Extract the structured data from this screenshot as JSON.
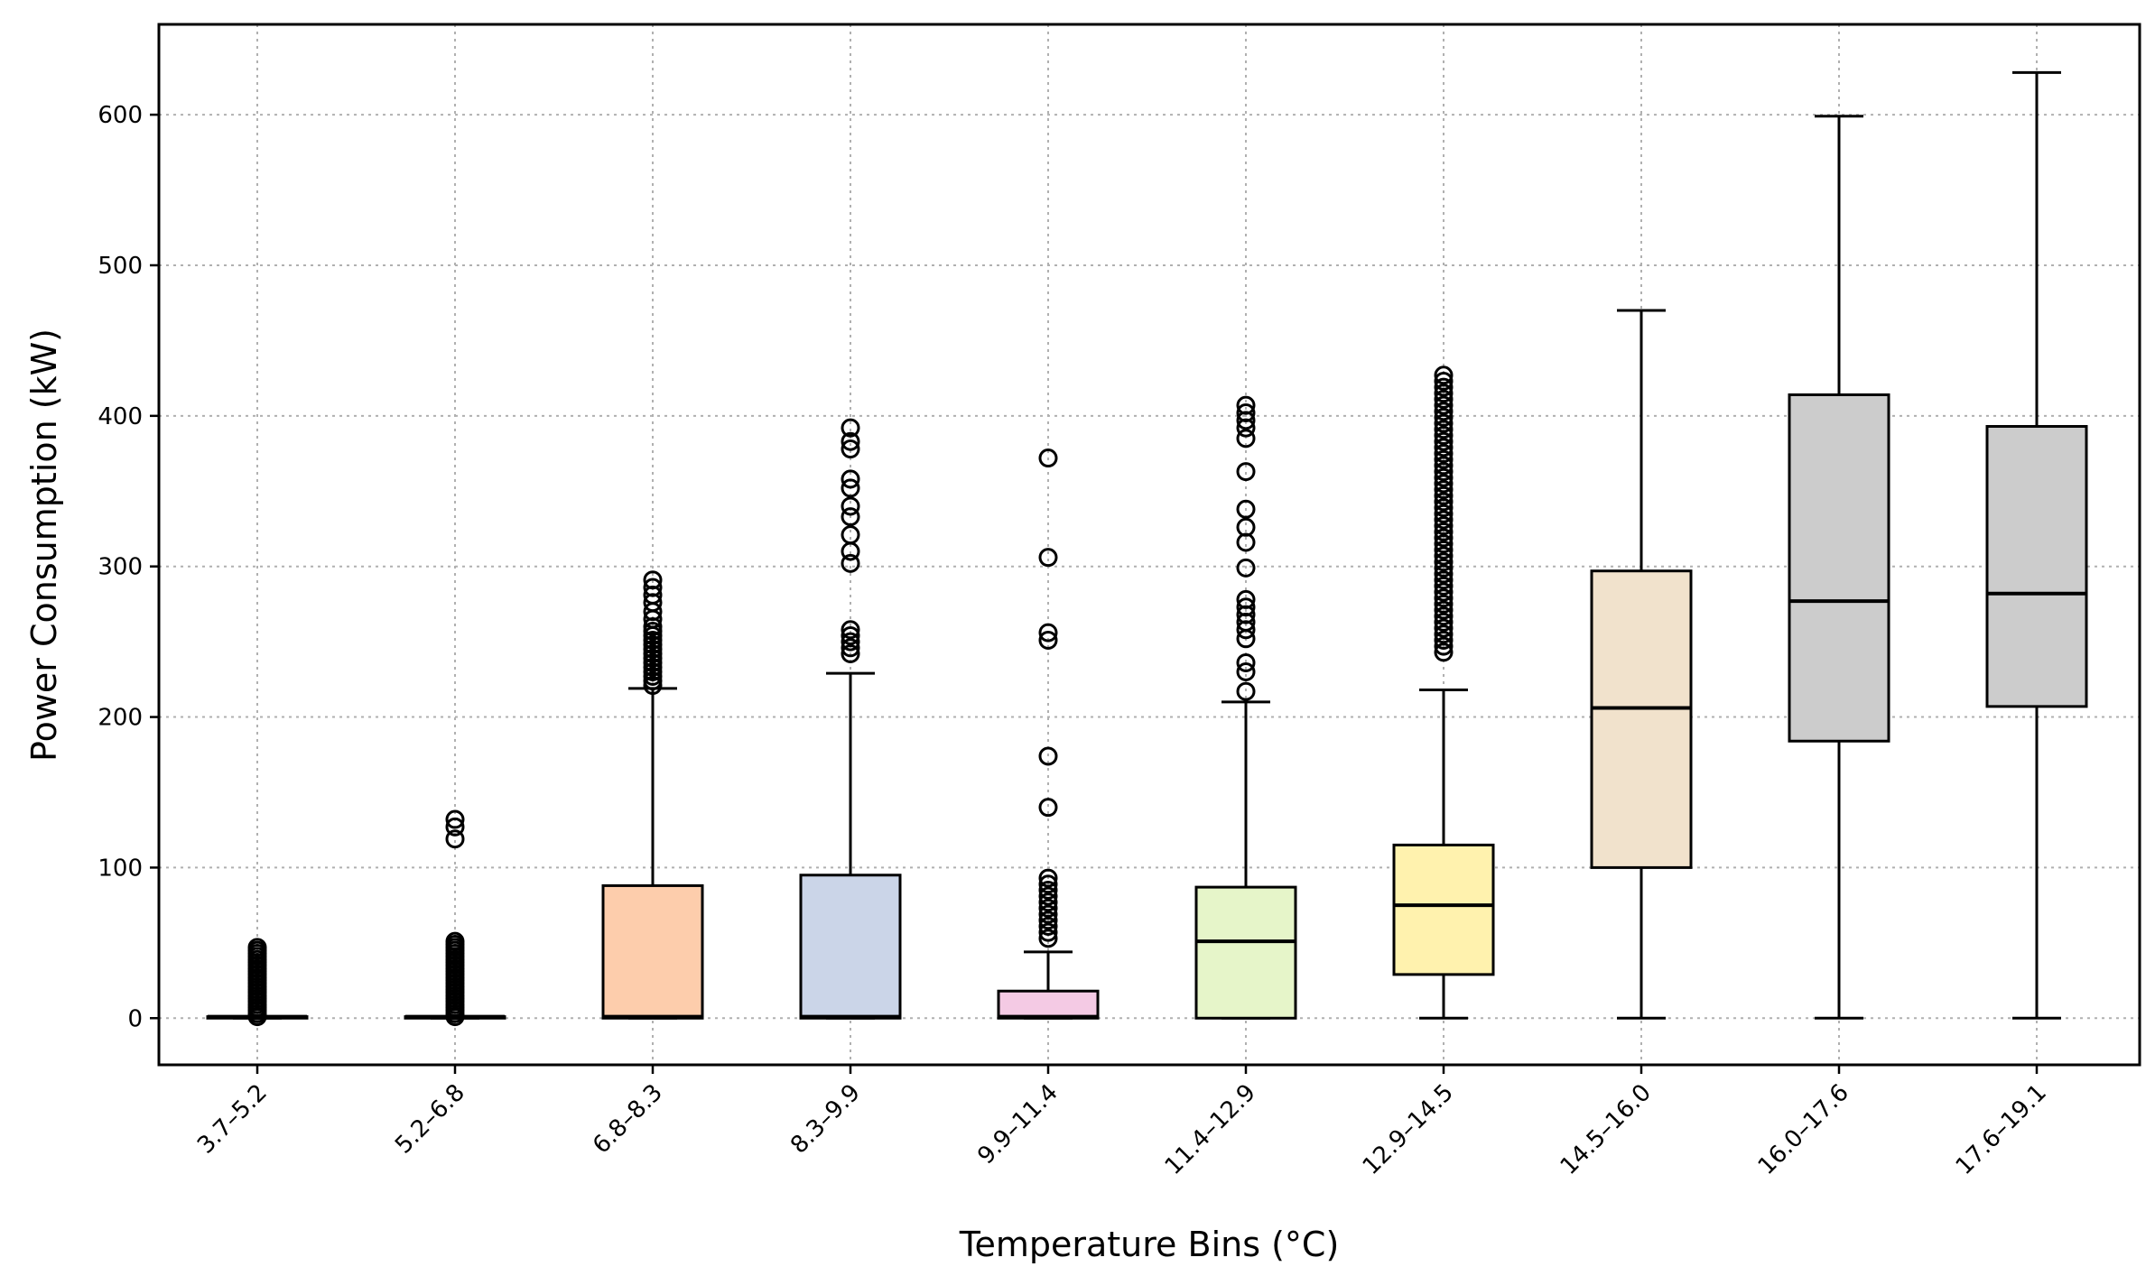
{
  "chart_data": {
    "type": "box",
    "title": "",
    "xlabel": "Temperature Bins (°C)",
    "ylabel": "Power Consumption (kW)",
    "ylim": [
      -31,
      660
    ],
    "yticks": [
      0,
      100,
      200,
      300,
      400,
      500,
      600
    ],
    "grid": true,
    "categories": [
      "3.7–5.2",
      "5.2–6.8",
      "6.8–8.3",
      "8.3–9.9",
      "9.9–11.4",
      "11.4–12.9",
      "12.9–14.5",
      "14.5–16.0",
      "16.0–17.6",
      "17.6–19.1"
    ],
    "boxes": [
      {
        "category": "3.7–5.2",
        "whisker_low": 0,
        "q1": 0,
        "median": 1,
        "q3": 1,
        "whisker_high": 1,
        "color": "#b3cde3",
        "outliers": [
          1,
          3,
          5,
          7,
          9,
          11,
          13,
          15,
          17,
          19,
          21,
          23,
          25,
          27,
          29,
          31,
          33,
          35,
          37,
          39,
          41,
          43,
          45,
          47
        ]
      },
      {
        "category": "5.2–6.8",
        "whisker_low": 0,
        "q1": 0,
        "median": 1,
        "q3": 1,
        "whisker_high": 1,
        "color": "#ccebc5",
        "outliers": [
          1,
          3,
          5,
          7,
          9,
          11,
          13,
          15,
          17,
          19,
          21,
          23,
          25,
          27,
          29,
          31,
          33,
          35,
          37,
          39,
          41,
          43,
          45,
          47,
          49,
          51,
          119,
          127,
          132
        ]
      },
      {
        "category": "6.8–8.3",
        "whisker_low": 0,
        "q1": 0,
        "median": 1,
        "q3": 88,
        "whisker_high": 219,
        "color": "#fdcdac",
        "outliers": [
          221,
          224,
          227,
          230,
          233,
          236,
          239,
          242,
          245,
          248,
          251,
          254,
          257,
          260,
          265,
          270,
          276,
          281,
          286,
          291
        ]
      },
      {
        "category": "8.3–9.9",
        "whisker_low": 0,
        "q1": 0,
        "median": 1,
        "q3": 95,
        "whisker_high": 229,
        "color": "#cbd5e8",
        "outliers": [
          242,
          246,
          250,
          254,
          258,
          302,
          310,
          321,
          333,
          340,
          352,
          358,
          378,
          383,
          392
        ]
      },
      {
        "category": "9.9–11.4",
        "whisker_low": 0,
        "q1": 0,
        "median": 1,
        "q3": 18,
        "whisker_high": 44,
        "color": "#f4cae4",
        "outliers": [
          53,
          57,
          61,
          65,
          69,
          73,
          77,
          81,
          85,
          89,
          93,
          140,
          174,
          251,
          256,
          306,
          372
        ]
      },
      {
        "category": "11.4–12.9",
        "whisker_low": 0,
        "q1": 0,
        "median": 51,
        "q3": 87,
        "whisker_high": 210,
        "color": "#e6f5c9",
        "outliers": [
          217,
          230,
          236,
          252,
          258,
          263,
          268,
          273,
          278,
          299,
          316,
          326,
          338,
          363,
          385,
          392,
          397,
          402,
          407
        ]
      },
      {
        "category": "12.9–14.5",
        "whisker_low": 0,
        "q1": 29,
        "median": 75,
        "q3": 115,
        "whisker_high": 218,
        "color": "#fff2ae",
        "outliers": [
          243,
          247,
          251,
          255,
          259,
          263,
          267,
          271,
          275,
          279,
          283,
          287,
          291,
          295,
          299,
          303,
          307,
          311,
          315,
          319,
          323,
          327,
          331,
          335,
          339,
          343,
          347,
          351,
          355,
          359,
          363,
          367,
          371,
          375,
          379,
          383,
          387,
          391,
          395,
          399,
          403,
          407,
          411,
          415,
          419,
          423,
          427
        ]
      },
      {
        "category": "14.5–16.0",
        "whisker_low": 0,
        "q1": 100,
        "median": 206,
        "q3": 297,
        "whisker_high": 470,
        "color": "#f1e2cc",
        "outliers": []
      },
      {
        "category": "16.0–17.6",
        "whisker_low": 0,
        "q1": 184,
        "median": 277,
        "q3": 414,
        "whisker_high": 599,
        "color": "#cccccc",
        "outliers": []
      },
      {
        "category": "17.6–19.1",
        "whisker_low": 0,
        "q1": 207,
        "median": 282,
        "q3": 393,
        "whisker_high": 628,
        "color": "#cccccc",
        "outliers": []
      }
    ]
  }
}
